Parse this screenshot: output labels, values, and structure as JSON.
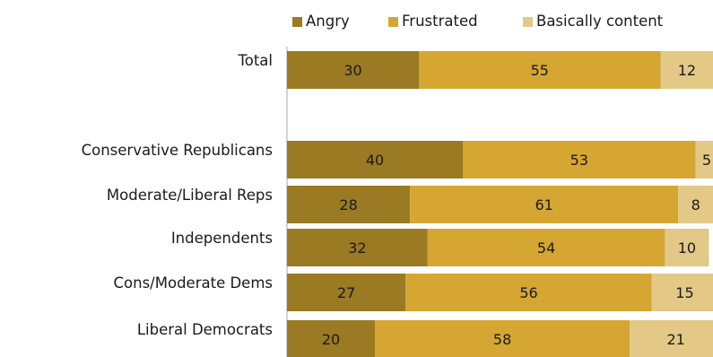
{
  "chart_data": {
    "type": "bar",
    "orientation": "horizontal",
    "stacked": true,
    "categories": [
      "Total",
      "",
      "Conservative  Republicans",
      "Moderate/Liberal Reps",
      "Independents",
      "Cons/Moderate Dems",
      "Liberal Democrats"
    ],
    "series": [
      {
        "name": "Angry",
        "color": "#9b7a24",
        "values": [
          30,
          null,
          40,
          28,
          32,
          27,
          20
        ]
      },
      {
        "name": "Frustrated",
        "color": "#d5a632",
        "values": [
          55,
          null,
          53,
          61,
          54,
          56,
          58
        ]
      },
      {
        "name": "Basically content",
        "color": "#e3c886",
        "values": [
          12,
          null,
          5,
          8,
          10,
          15,
          21
        ]
      }
    ],
    "legend_position": "top",
    "grid": false,
    "axis_line_color": "#a6a6a6"
  }
}
